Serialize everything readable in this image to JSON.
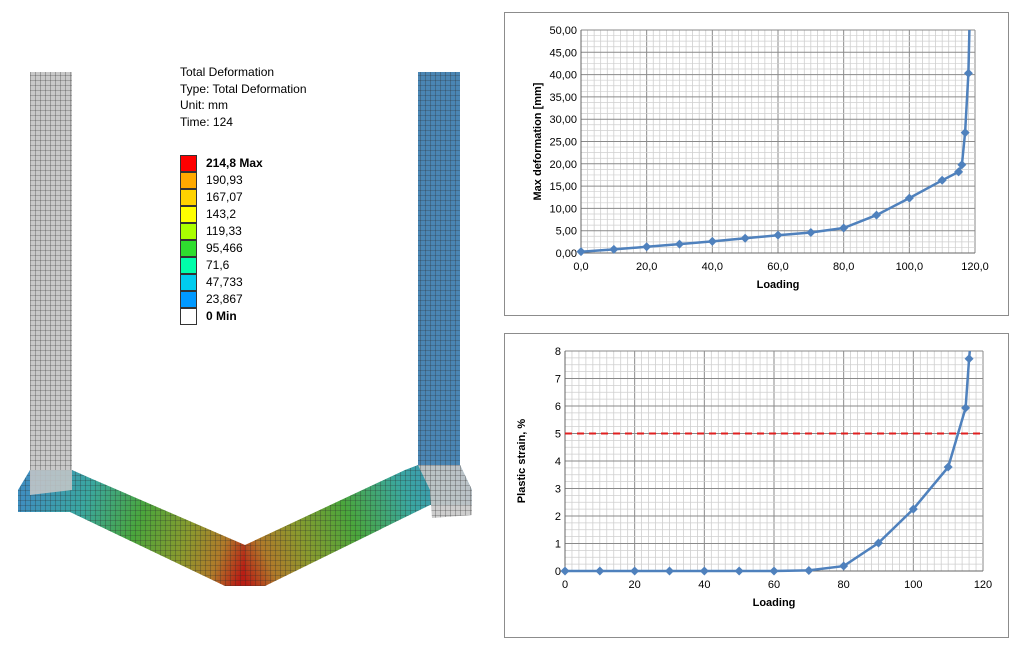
{
  "fea": {
    "header": [
      "Total Deformation",
      "Type: Total Deformation",
      "Unit: mm",
      "Time: 124"
    ],
    "legend": [
      {
        "label": "214,8 Max",
        "color": "#ff0000",
        "bold": true
      },
      {
        "label": "190,93",
        "color": "#ffaa00",
        "bold": false
      },
      {
        "label": "167,07",
        "color": "#ffd200",
        "bold": false
      },
      {
        "label": "143,2",
        "color": "#ffff00",
        "bold": false
      },
      {
        "label": "119,33",
        "color": "#aaff00",
        "bold": false
      },
      {
        "label": "95,466",
        "color": "#2fde2f",
        "bold": false
      },
      {
        "label": "71,6",
        "color": "#00ffaa",
        "bold": false
      },
      {
        "label": "47,733",
        "color": "#00ccee",
        "bold": false
      },
      {
        "label": "23,867",
        "color": "#0099ff",
        "bold": false
      },
      {
        "label": "0 Min",
        "color": "#ffffff",
        "bold": true
      }
    ]
  },
  "chart_data": [
    {
      "type": "line",
      "xlabel": "Loading",
      "ylabel": "Max deformation [mm]",
      "xlim": [
        0,
        120
      ],
      "ylim": [
        0,
        50
      ],
      "x_ticks": [
        "0,0",
        "20,0",
        "40,0",
        "60,0",
        "80,0",
        "100,0",
        "120,0"
      ],
      "y_ticks": [
        "0,00",
        "5,00",
        "10,00",
        "15,00",
        "20,00",
        "25,00",
        "30,00",
        "35,00",
        "40,00",
        "45,00",
        "50,00"
      ],
      "grid": true,
      "color": "#4f81bd",
      "x": [
        0,
        10,
        20,
        30,
        40,
        50,
        60,
        70,
        80,
        90,
        100,
        110,
        115,
        116,
        117,
        118
      ],
      "y": [
        0.3,
        0.8,
        1.4,
        2.0,
        2.6,
        3.3,
        4.0,
        4.6,
        5.6,
        8.5,
        12.3,
        16.3,
        18.2,
        19.8,
        27.0,
        40.3
      ],
      "tail": {
        "x": 118.3,
        "y": 50
      }
    },
    {
      "type": "line",
      "xlabel": "Loading",
      "ylabel": "Plastic strain, %",
      "xlim": [
        0,
        120
      ],
      "ylim": [
        0,
        8
      ],
      "x_ticks": [
        "0",
        "20",
        "40",
        "60",
        "80",
        "100",
        "120"
      ],
      "y_ticks": [
        "0",
        "1",
        "2",
        "3",
        "4",
        "5",
        "6",
        "7",
        "8"
      ],
      "grid": true,
      "color": "#4f81bd",
      "threshold": {
        "y": 5,
        "color": "#e02020"
      },
      "x": [
        0,
        10,
        20,
        30,
        40,
        50,
        60,
        70,
        80,
        90,
        100,
        110,
        115,
        116
      ],
      "y": [
        0,
        0,
        0,
        0,
        0,
        0,
        0,
        0.02,
        0.18,
        1.02,
        2.25,
        3.78,
        5.93,
        7.72
      ],
      "tail": {
        "x": 116.2,
        "y": 8
      }
    }
  ]
}
